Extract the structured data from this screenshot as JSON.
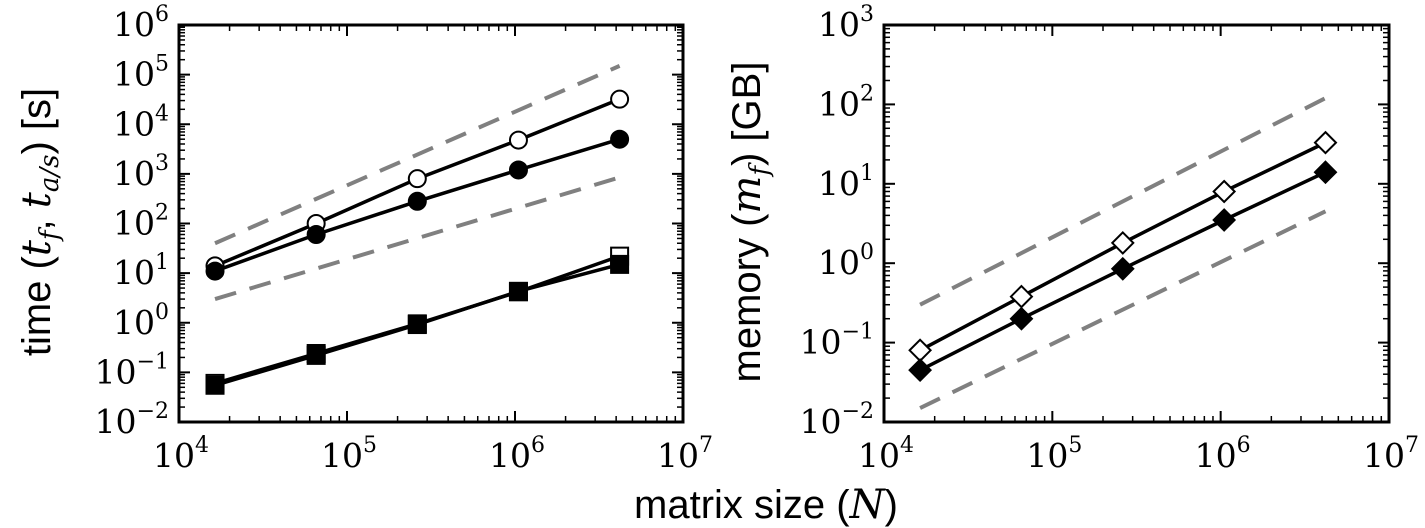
{
  "colors": {
    "axis": "#000000",
    "line": "#000000",
    "guide": "#808080",
    "background": "#ffffff"
  },
  "shared_xlabel": {
    "prefix": "matrix size (",
    "symbol": "N",
    "suffix": ")"
  },
  "chart_data": [
    {
      "id": "time",
      "type": "line",
      "xscale": "log",
      "yscale": "log",
      "xlim": [
        10000,
        10000000
      ],
      "ylim": [
        0.01,
        1000000
      ],
      "xticks": [
        {
          "base": "10",
          "exp": "4"
        },
        {
          "base": "10",
          "exp": "5"
        },
        {
          "base": "10",
          "exp": "6"
        },
        {
          "base": "10",
          "exp": "7"
        }
      ],
      "yticks": [
        {
          "base": "10",
          "exp": "−2"
        },
        {
          "base": "10",
          "exp": "−1"
        },
        {
          "base": "10",
          "exp": "0"
        },
        {
          "base": "10",
          "exp": "1"
        },
        {
          "base": "10",
          "exp": "2"
        },
        {
          "base": "10",
          "exp": "3"
        },
        {
          "base": "10",
          "exp": "4"
        },
        {
          "base": "10",
          "exp": "5"
        },
        {
          "base": "10",
          "exp": "6"
        }
      ],
      "ylabel": {
        "prefix": "time (",
        "s1": "t",
        "s1sub": "f",
        "sep": ", ",
        "s2": "t",
        "s2sub": "a/s",
        "suffix": ") [s]"
      },
      "series": [
        {
          "name": "open circles",
          "marker": "circle",
          "filled": false,
          "x": [
            16384,
            65536,
            262144,
            1048576,
            4194304
          ],
          "y": [
            14,
            100,
            800,
            4800,
            32000
          ]
        },
        {
          "name": "filled circles",
          "marker": "circle",
          "filled": true,
          "x": [
            16384,
            65536,
            262144,
            1048576,
            4194304
          ],
          "y": [
            11,
            60,
            280,
            1200,
            5000
          ]
        },
        {
          "name": "open squares",
          "marker": "square",
          "filled": false,
          "x": [
            16384,
            65536,
            262144,
            1048576,
            4194304
          ],
          "y": [
            0.06,
            0.24,
            0.95,
            4.2,
            22
          ]
        },
        {
          "name": "filled squares",
          "marker": "square",
          "filled": true,
          "x": [
            16384,
            65536,
            262144,
            1048576,
            4194304
          ],
          "y": [
            0.055,
            0.22,
            0.92,
            4.3,
            15
          ]
        }
      ],
      "guides": [
        {
          "name": "upper guide",
          "x": [
            16384,
            4194304
          ],
          "y": [
            40,
            150000
          ]
        },
        {
          "name": "lower guide",
          "x": [
            16384,
            4194304
          ],
          "y": [
            3,
            850
          ]
        }
      ]
    },
    {
      "id": "memory",
      "type": "line",
      "xscale": "log",
      "yscale": "log",
      "xlim": [
        10000,
        10000000
      ],
      "ylim": [
        0.01,
        1000
      ],
      "xticks": [
        {
          "base": "10",
          "exp": "4"
        },
        {
          "base": "10",
          "exp": "5"
        },
        {
          "base": "10",
          "exp": "6"
        },
        {
          "base": "10",
          "exp": "7"
        }
      ],
      "yticks": [
        {
          "base": "10",
          "exp": "−2"
        },
        {
          "base": "10",
          "exp": "−1"
        },
        {
          "base": "10",
          "exp": "0"
        },
        {
          "base": "10",
          "exp": "1"
        },
        {
          "base": "10",
          "exp": "2"
        },
        {
          "base": "10",
          "exp": "3"
        }
      ],
      "ylabel": {
        "prefix": "memory (",
        "s1": "m",
        "s1sub": "f",
        "suffix": ") [GB]"
      },
      "series": [
        {
          "name": "open diamonds",
          "marker": "diamond",
          "filled": false,
          "x": [
            16384,
            65536,
            262144,
            1048576,
            4194304
          ],
          "y": [
            0.08,
            0.38,
            1.8,
            8,
            33
          ]
        },
        {
          "name": "filled diamonds",
          "marker": "diamond",
          "filled": true,
          "x": [
            16384,
            65536,
            262144,
            1048576,
            4194304
          ],
          "y": [
            0.045,
            0.2,
            0.85,
            3.5,
            14
          ]
        }
      ],
      "guides": [
        {
          "name": "upper guide",
          "x": [
            16384,
            4194304
          ],
          "y": [
            0.3,
            120
          ]
        },
        {
          "name": "lower guide",
          "x": [
            16384,
            4194304
          ],
          "y": [
            0.015,
            4.5
          ]
        }
      ]
    }
  ]
}
